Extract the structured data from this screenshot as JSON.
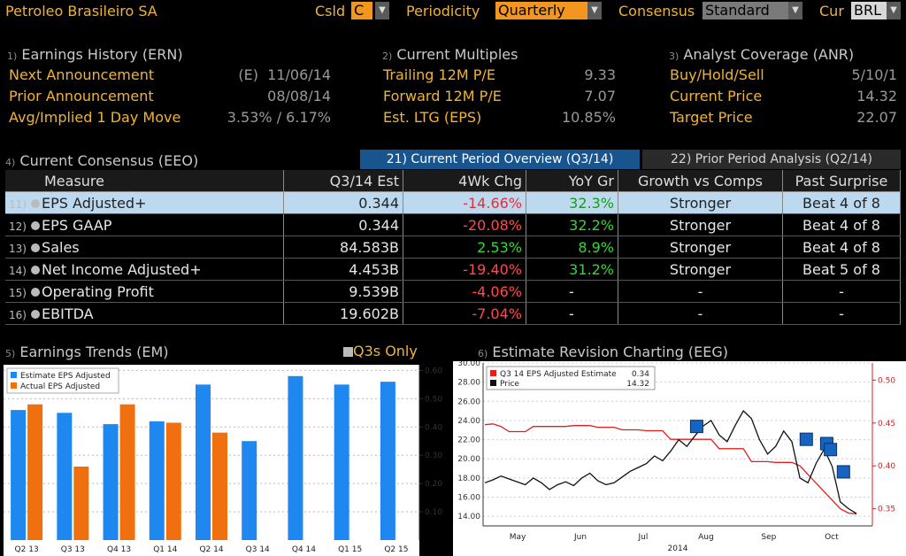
{
  "header": {
    "company": "Petroleo Brasileiro SA",
    "csld_label": "Csld",
    "csld_value": "C",
    "periodicity_label": "Periodicity",
    "periodicity_value": "Quarterly",
    "consensus_label": "Consensus",
    "consensus_value": "Standard",
    "cur_label": "Cur",
    "cur_value": "BRL"
  },
  "earnings_history": {
    "num": "1)",
    "title": "Earnings History (ERN)",
    "rows": [
      {
        "label": "Next Announcement",
        "value": "(E)  11/06/14"
      },
      {
        "label": "Prior Announcement",
        "value": "08/08/14"
      },
      {
        "label": "Avg/Implied 1 Day Move",
        "value": "3.53% / 6.17%"
      }
    ]
  },
  "current_multiples": {
    "num": "2)",
    "title": "Current Multiples",
    "rows": [
      {
        "label": "Trailing 12M P/E",
        "value": "9.33"
      },
      {
        "label": "Forward 12M P/E",
        "value": "7.07"
      },
      {
        "label": "Est. LTG (EPS)",
        "value": "10.85%"
      }
    ]
  },
  "analyst_coverage": {
    "num": "3)",
    "title": "Analyst Coverage (ANR)",
    "rows": [
      {
        "label": "Buy/Hold/Sell",
        "value": "5/10/1"
      },
      {
        "label": "Current Price",
        "value": "14.32"
      },
      {
        "label": "Target Price",
        "value": "22.07"
      }
    ]
  },
  "consensus": {
    "num": "4)",
    "title": "Current Consensus (EEO)",
    "tab1": "21) Current Period Overview (Q3/14)",
    "tab2": "22) Prior Period Analysis (Q2/14)",
    "columns": [
      "Measure",
      "Q3/14 Est",
      "4Wk Chg",
      "YoY Gr",
      "Growth vs Comps",
      "Past Surprise"
    ],
    "rows": [
      {
        "no": "11)",
        "measure": "EPS Adjusted+",
        "est": "0.344",
        "chg": "-14.66%",
        "yoy": "32.3%",
        "comps": "Stronger",
        "surprise": "Beat 4 of 8"
      },
      {
        "no": "12)",
        "measure": "EPS GAAP",
        "est": "0.344",
        "chg": "-20.08%",
        "yoy": "32.2%",
        "comps": "Stronger",
        "surprise": "Beat 4 of 8"
      },
      {
        "no": "13)",
        "measure": "Sales",
        "est": "84.583B",
        "chg": "2.53%",
        "yoy": "8.9%",
        "comps": "Stronger",
        "surprise": "Beat 4 of 8"
      },
      {
        "no": "14)",
        "measure": "Net Income Adjusted+",
        "est": "4.453B",
        "chg": "-19.40%",
        "yoy": "31.2%",
        "comps": "Stronger",
        "surprise": "Beat 5 of 8"
      },
      {
        "no": "15)",
        "measure": "Operating Profit",
        "est": "9.539B",
        "chg": "-4.06%",
        "yoy": "-",
        "comps": "-",
        "surprise": "-"
      },
      {
        "no": "16)",
        "measure": "EBITDA",
        "est": "19.602B",
        "chg": "-7.04%",
        "yoy": "-",
        "comps": "-",
        "surprise": "-"
      }
    ]
  },
  "earnings_trends": {
    "num": "5)",
    "title": "Earnings Trends (EM)",
    "toggle": "Q3s Only"
  },
  "revision": {
    "num": "6)",
    "title": "Estimate Revision Charting (EEG)",
    "legend_est": "Q3 14 EPS Adjusted Estimate",
    "legend_est_val": "0.34",
    "legend_price": "Price",
    "legend_price_val": "14.32",
    "year_label": "2014"
  },
  "colors": {
    "accent": "#f2b233",
    "blue": "#1e88f0",
    "orange": "#f07010",
    "red": "#e02020"
  },
  "chart_data": [
    {
      "type": "bar",
      "categories": [
        "Q2 13",
        "Q3 13",
        "Q4 13",
        "Q1 14",
        "Q2 14",
        "Q3 14",
        "Q4 14",
        "Q1 15",
        "Q2 15"
      ],
      "series": [
        {
          "name": "Estimate EPS Adjusted",
          "color": "#1e88f0",
          "values": [
            0.46,
            0.45,
            0.41,
            0.42,
            0.55,
            0.35,
            0.58,
            0.55,
            0.56
          ]
        },
        {
          "name": "Actual EPS Adjusted",
          "color": "#f07010",
          "values": [
            0.48,
            0.26,
            0.48,
            0.415,
            0.38,
            null,
            null,
            null,
            null
          ]
        }
      ],
      "yticks": [
        "0.10",
        "0.20",
        "0.30",
        "0.40",
        "0.50",
        "0.60"
      ],
      "ylim": [
        0,
        0.62
      ]
    },
    {
      "type": "line",
      "x_labels": [
        "May",
        "Jun",
        "Jul",
        "Aug",
        "Sep",
        "Oct"
      ],
      "left_ticks": [
        "14.00",
        "16.00",
        "18.00",
        "20.00",
        "22.00",
        "24.00",
        "26.00",
        "28.00",
        "30.00"
      ],
      "right_ticks": [
        "0.35",
        "0.40",
        "0.45",
        "0.50"
      ],
      "left_ylim": [
        13,
        30
      ],
      "right_ylim": [
        0.33,
        0.52
      ],
      "series": [
        {
          "name": "Q3 14 EPS Adjusted Estimate",
          "axis": "right",
          "color": "#e02020",
          "values": [
            0.448,
            0.449,
            0.446,
            0.44,
            0.44,
            0.44,
            0.446,
            0.446,
            0.446,
            0.446,
            0.446,
            0.447,
            0.447,
            0.447,
            0.445,
            0.445,
            0.445,
            0.442,
            0.442,
            0.442,
            0.441,
            0.441,
            0.441,
            0.431,
            0.431,
            0.431,
            0.431,
            0.431,
            0.431,
            0.42,
            0.42,
            0.42,
            0.42,
            0.405,
            0.405,
            0.405,
            0.404,
            0.404,
            0.404,
            0.4,
            0.39,
            0.38,
            0.37,
            0.36,
            0.35,
            0.345,
            0.344
          ]
        },
        {
          "name": "Price",
          "axis": "left",
          "color": "#111111",
          "values": [
            17.5,
            17.8,
            18.2,
            17.9,
            17.6,
            17.3,
            18.0,
            17.5,
            16.8,
            17.3,
            17.6,
            17.2,
            18.0,
            18.5,
            17.7,
            17.3,
            17.5,
            18.1,
            18.7,
            19.1,
            19.5,
            20.3,
            19.8,
            20.8,
            22.0,
            21.3,
            22.4,
            23.4,
            24.0,
            22.5,
            21.8,
            23.5,
            25.0,
            24.2,
            22.0,
            20.5,
            21.3,
            22.9,
            21.8,
            18.0,
            17.5,
            19.5,
            21.0,
            19.2,
            15.5,
            14.8,
            14.3
          ]
        }
      ]
    }
  ]
}
